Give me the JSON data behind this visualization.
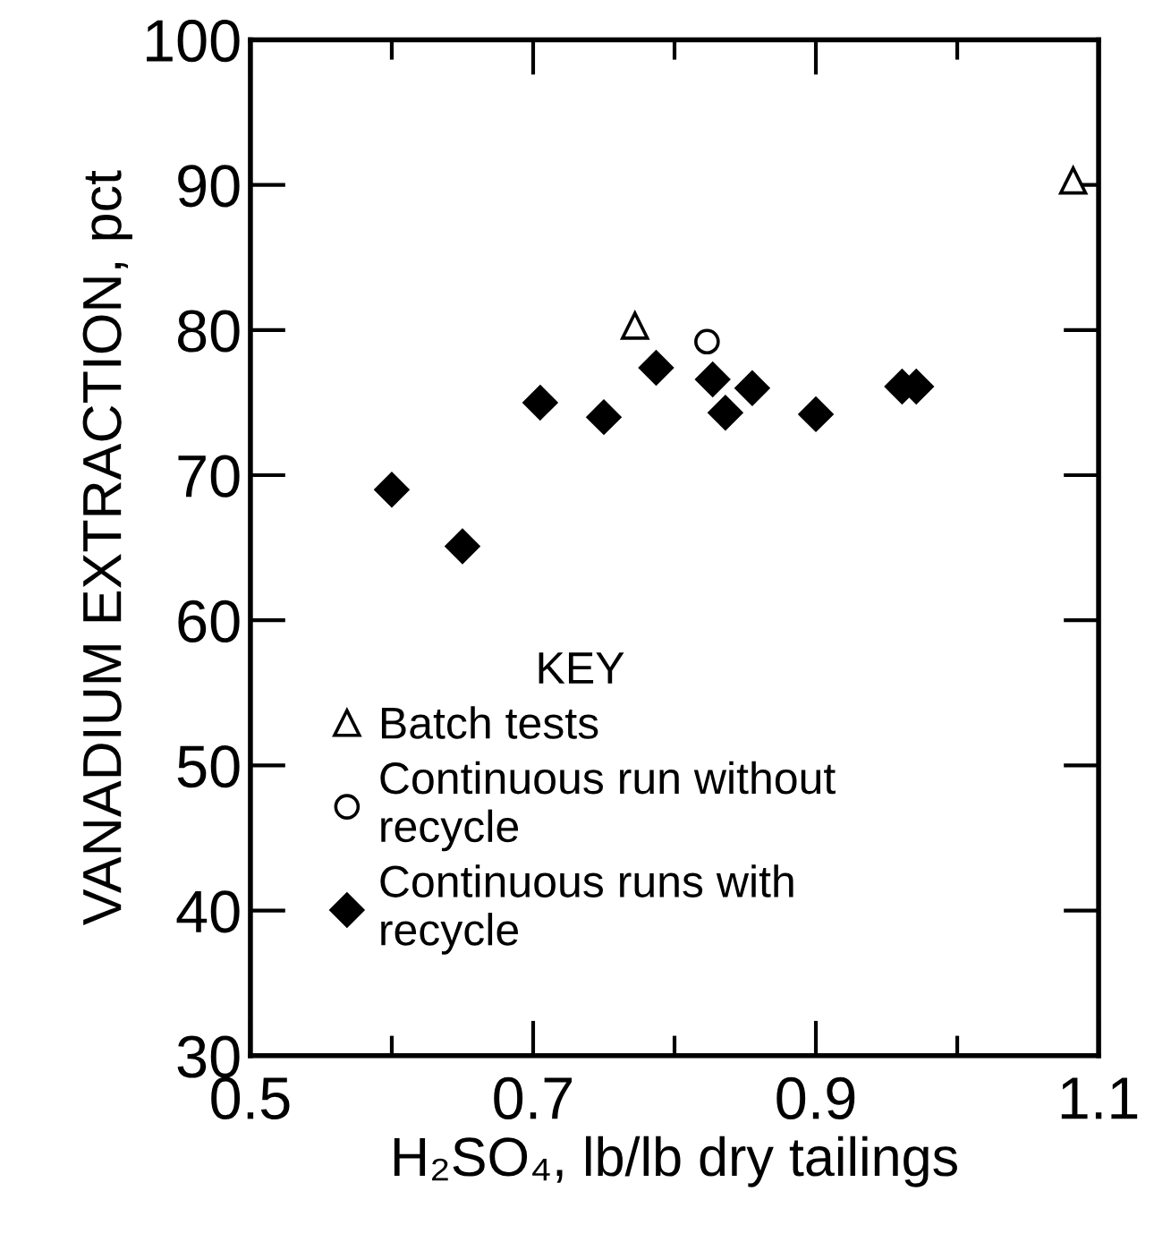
{
  "chart_data": {
    "type": "scatter",
    "xlabel": "H₂SO₄, lb/lb dry tailings",
    "ylabel": "VANADIUM EXTRACTION, pct",
    "legend_title": "KEY",
    "xlim": [
      0.5,
      1.1
    ],
    "xticks": [
      0.5,
      {
        "value": 0.6,
        "label": null
      },
      0.7,
      {
        "value": 0.8,
        "label": null
      },
      0.9,
      {
        "value": 1.0,
        "label": null
      },
      1.1
    ],
    "ylim": [
      30,
      100
    ],
    "yticks": [
      30,
      40,
      50,
      60,
      70,
      80,
      90,
      100
    ],
    "grid": false,
    "legend": "bottom left",
    "series": [
      {
        "name": "Batch tests",
        "color": "#000000",
        "marker": "triangle",
        "x": [
          0.772,
          1.082
        ],
        "values": [
          80.3,
          90.3
        ]
      },
      {
        "name": "Continuous run without recycle",
        "color": "#000000",
        "marker": "circle",
        "x": [
          0.823
        ],
        "values": [
          79.2
        ]
      },
      {
        "name": "Continuous runs with recycle",
        "color": "#000000",
        "marker": "diamond",
        "x": [
          0.6,
          0.65,
          0.705,
          0.75,
          0.787,
          0.827,
          0.836,
          0.855,
          0.9,
          0.961,
          0.971
        ],
        "values": [
          69,
          65.1,
          75,
          74,
          77.4,
          76.6,
          74.3,
          76,
          74.2,
          76.1,
          76.1
        ]
      }
    ]
  }
}
